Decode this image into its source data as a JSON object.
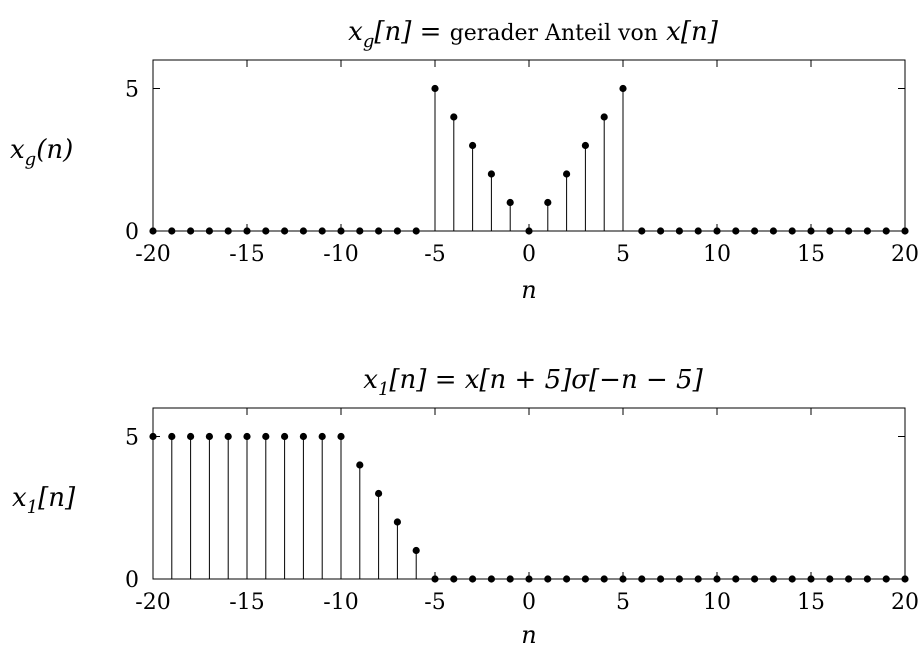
{
  "chart_data": [
    {
      "type": "stem",
      "title_parts": [
        "x",
        "g",
        "[n] = ",
        "gerader Anteil von",
        " x[n]"
      ],
      "ylabel_parts": [
        "x",
        "g",
        "(n)"
      ],
      "xlabel": "n",
      "xlim": [
        -20,
        20
      ],
      "ylim": [
        0,
        6
      ],
      "xticks": [
        "-20",
        "-15",
        "-10",
        "-5",
        "0",
        "5",
        "10",
        "15",
        "20"
      ],
      "yticks": [
        "0",
        "5"
      ],
      "x": [
        -20,
        -19,
        -18,
        -17,
        -16,
        -15,
        -14,
        -13,
        -12,
        -11,
        -10,
        -9,
        -8,
        -7,
        -6,
        -5,
        -4,
        -3,
        -2,
        -1,
        0,
        1,
        2,
        3,
        4,
        5,
        6,
        7,
        8,
        9,
        10,
        11,
        12,
        13,
        14,
        15,
        16,
        17,
        18,
        19,
        20
      ],
      "values": [
        0,
        0,
        0,
        0,
        0,
        0,
        0,
        0,
        0,
        0,
        0,
        0,
        0,
        0,
        0,
        5,
        4,
        3,
        2,
        1,
        0,
        1,
        2,
        3,
        4,
        5,
        0,
        0,
        0,
        0,
        0,
        0,
        0,
        0,
        0,
        0,
        0,
        0,
        0,
        0,
        0
      ]
    },
    {
      "type": "stem",
      "title_parts": [
        "x",
        "1",
        "[n] = x[n + 5]σ[−n − 5]"
      ],
      "ylabel_parts": [
        "x",
        "1",
        "[n]"
      ],
      "xlabel": "n",
      "xlim": [
        -20,
        20
      ],
      "ylim": [
        0,
        6
      ],
      "xticks": [
        "-20",
        "-15",
        "-10",
        "-5",
        "0",
        "5",
        "10",
        "15",
        "20"
      ],
      "yticks": [
        "0",
        "5"
      ],
      "x": [
        -20,
        -19,
        -18,
        -17,
        -16,
        -15,
        -14,
        -13,
        -12,
        -11,
        -10,
        -9,
        -8,
        -7,
        -6,
        -5,
        -4,
        -3,
        -2,
        -1,
        0,
        1,
        2,
        3,
        4,
        5,
        6,
        7,
        8,
        9,
        10,
        11,
        12,
        13,
        14,
        15,
        16,
        17,
        18,
        19,
        20
      ],
      "values": [
        5,
        5,
        5,
        5,
        5,
        5,
        5,
        5,
        5,
        5,
        5,
        4,
        3,
        2,
        1,
        0,
        0,
        0,
        0,
        0,
        0,
        0,
        0,
        0,
        0,
        0,
        0,
        0,
        0,
        0,
        0,
        0,
        0,
        0,
        0,
        0,
        0,
        0,
        0,
        0,
        0
      ]
    }
  ]
}
